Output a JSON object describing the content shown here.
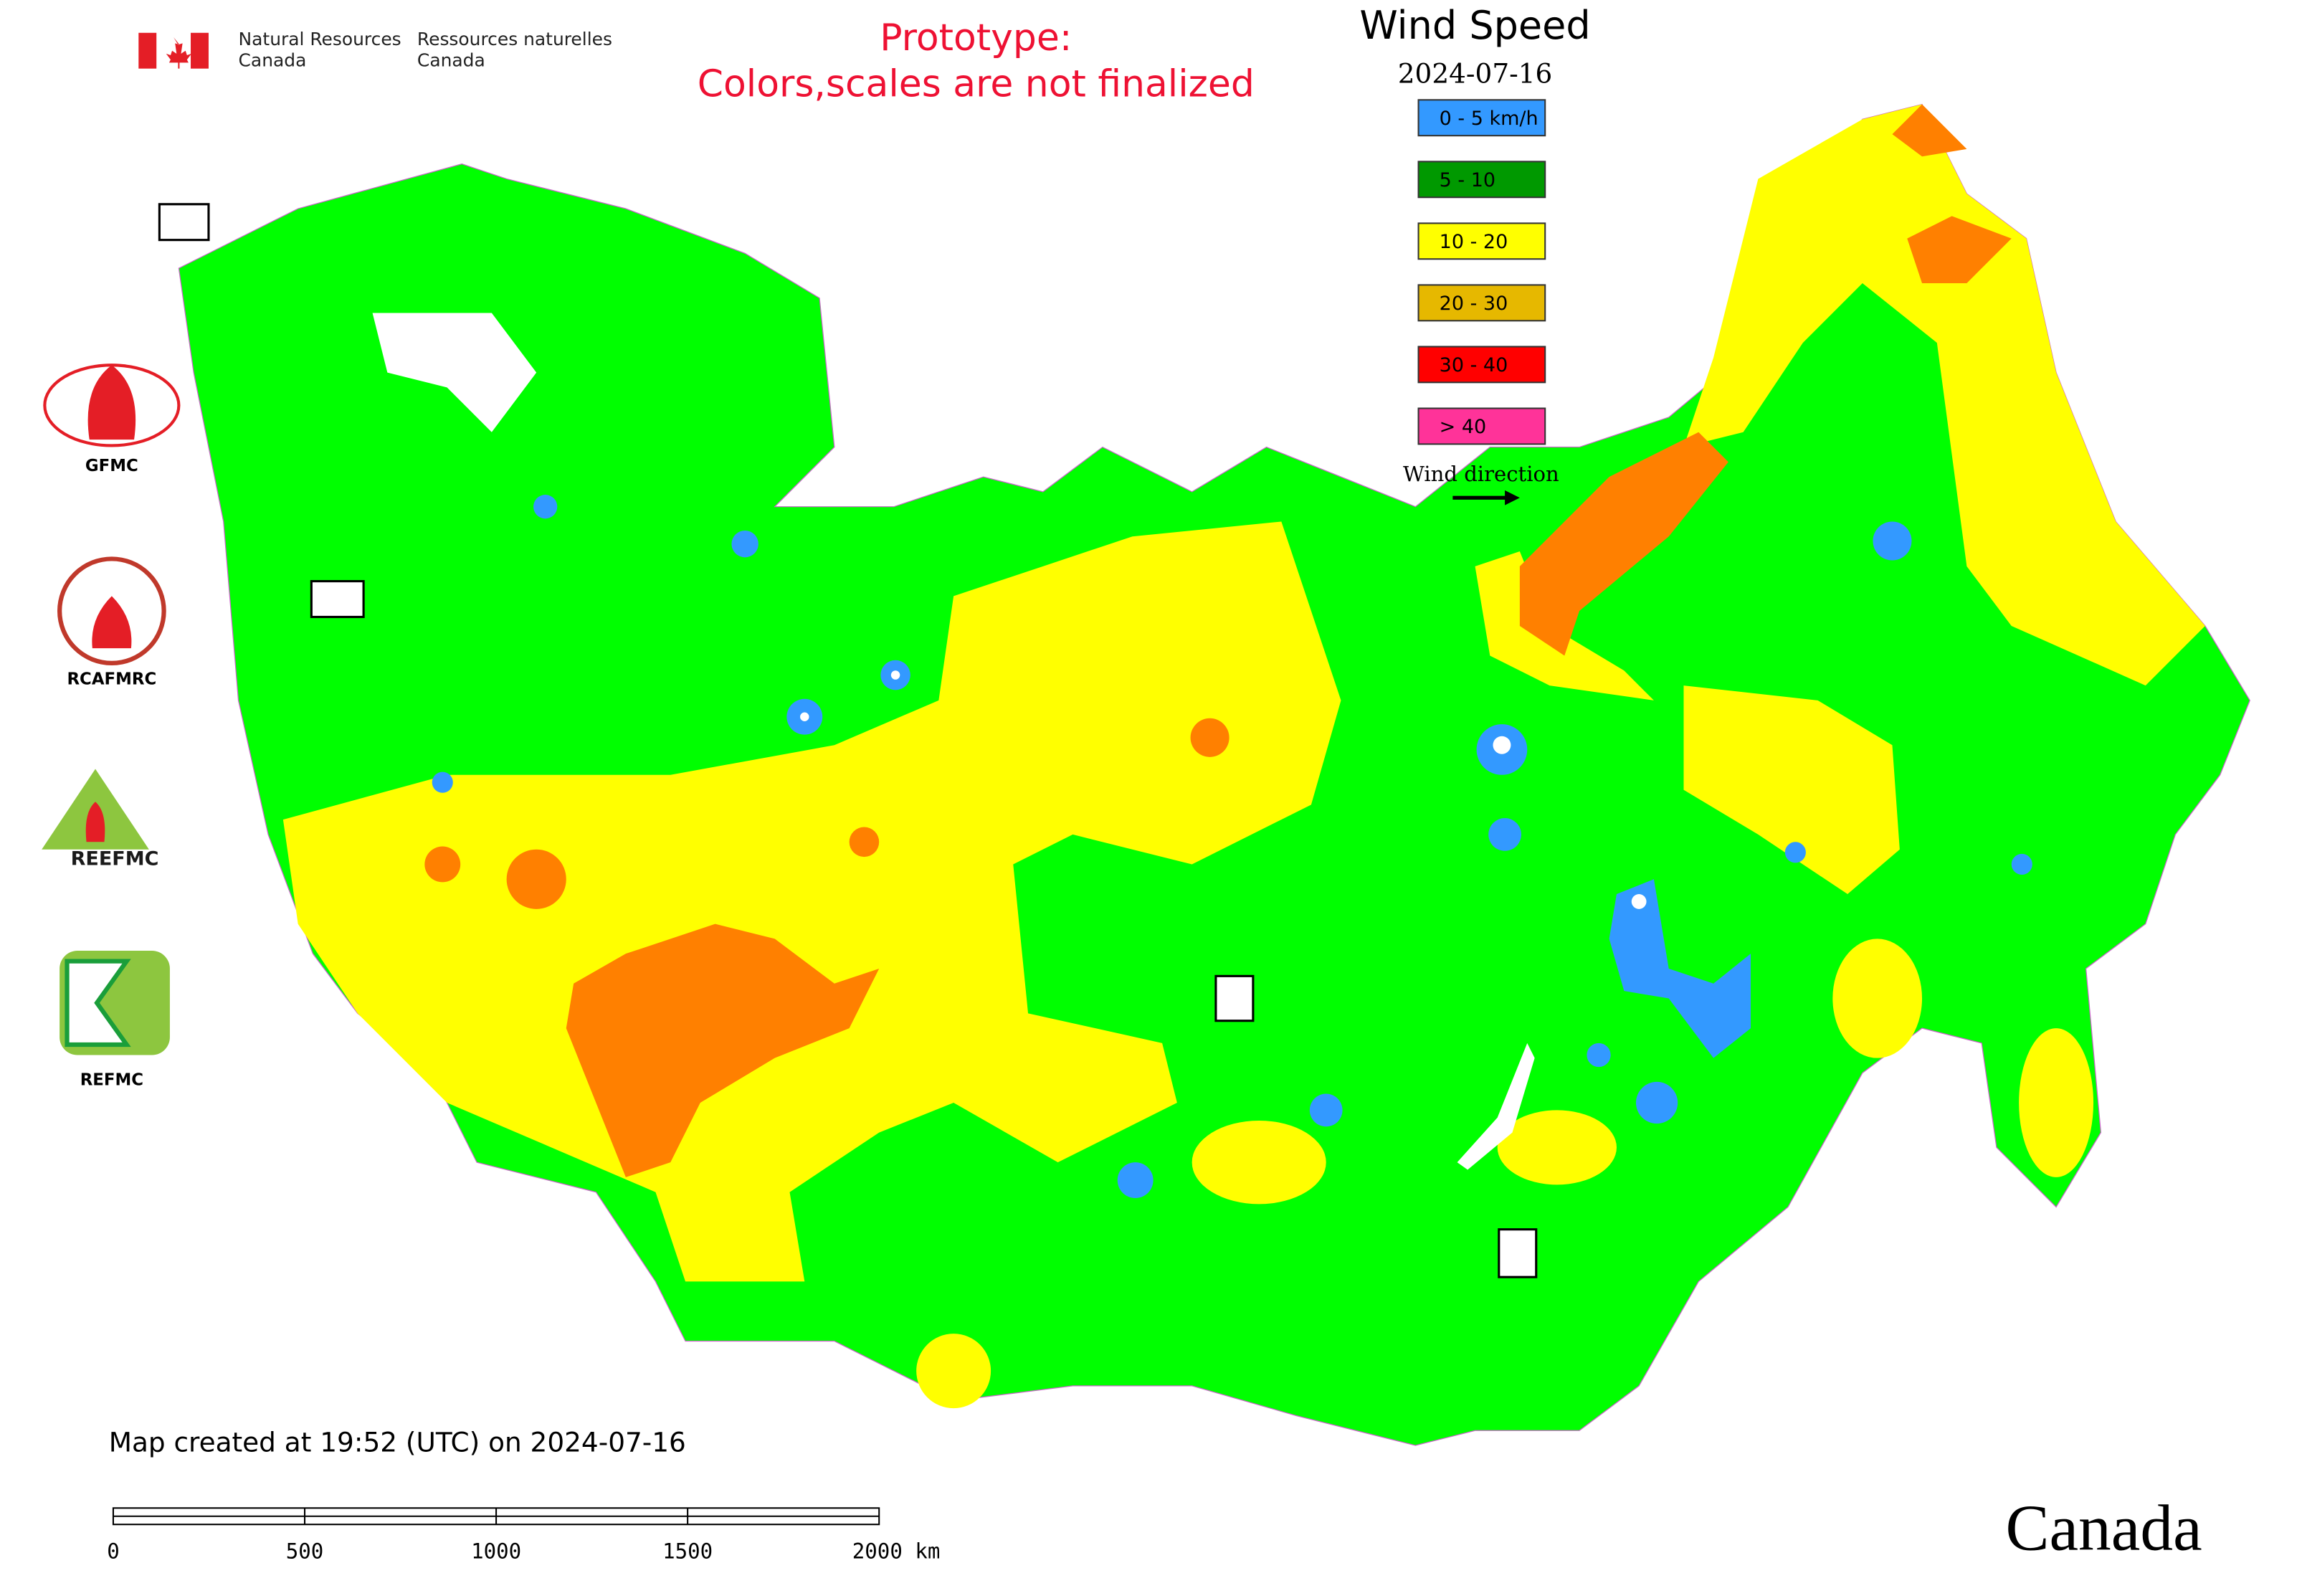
{
  "header": {
    "agency_en": [
      "Natural Resources",
      "Canada"
    ],
    "agency_fr": [
      "Ressources naturelles",
      "Canada"
    ]
  },
  "notice": [
    "Prototype:",
    "Colors,scales are not finalized"
  ],
  "legend": {
    "title": "Wind Speed",
    "date": "2024-07-16",
    "items": [
      {
        "label": "0 - 5 km/h",
        "color": "#3399ff"
      },
      {
        "label": "5 - 10",
        "color": "#009900"
      },
      {
        "label": "10 - 20",
        "color": "#ffff00"
      },
      {
        "label": "20 - 30",
        "color": "#e6b800"
      },
      {
        "label": "30 - 40",
        "color": "#ff0000"
      },
      {
        "label": "> 40",
        "color": "#ff3399"
      }
    ],
    "wind_direction": "Wind direction"
  },
  "logos": [
    "GFMC",
    "RCAFMRC",
    "REEFMC",
    "REFMC"
  ],
  "footer": {
    "created": "Map created at 19:52 (UTC) on 2024-07-16",
    "scale_labels": [
      "0",
      "500",
      "1000",
      "1500",
      "2000 km"
    ],
    "wordmark": "Canada"
  }
}
